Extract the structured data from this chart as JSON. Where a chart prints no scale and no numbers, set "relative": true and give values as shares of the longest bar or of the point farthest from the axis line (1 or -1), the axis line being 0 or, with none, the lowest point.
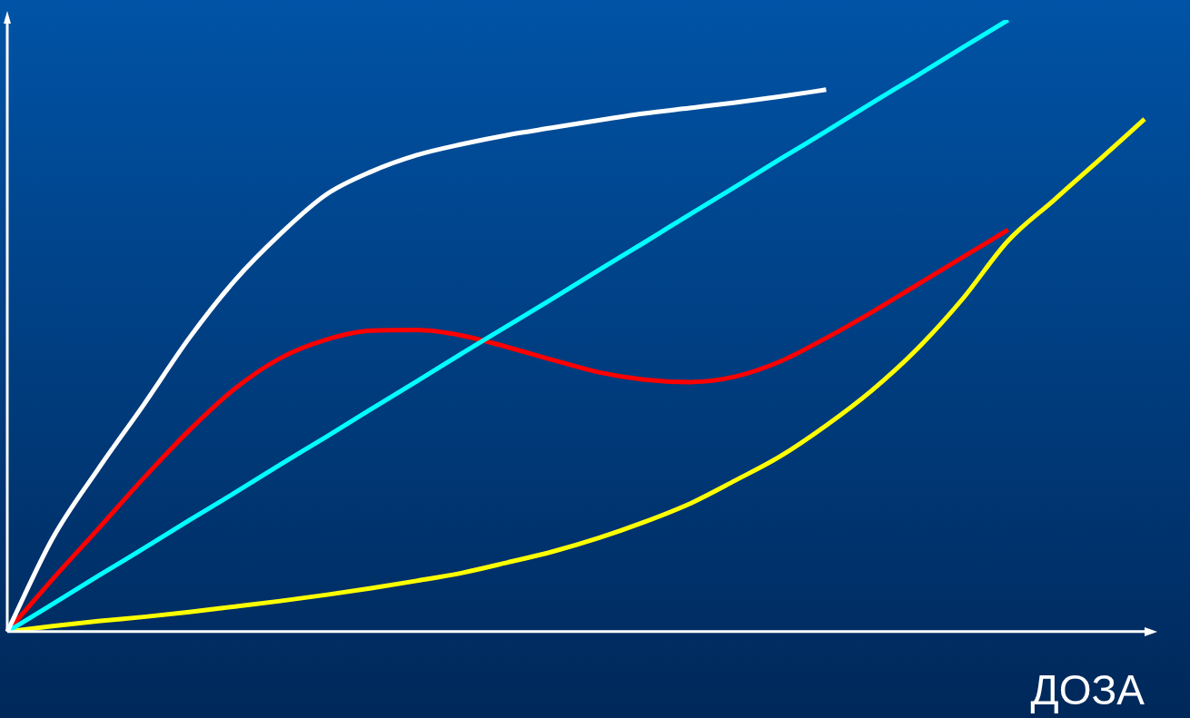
{
  "chart_data": {
    "type": "line",
    "relative": true,
    "xlabel": "ДОЗА",
    "marker": "none",
    "categories": [
      null,
      null,
      null,
      null,
      null,
      null,
      null,
      null,
      null,
      null,
      null,
      null,
      null,
      null,
      null,
      null,
      null,
      null,
      null,
      null,
      null,
      null,
      null,
      null,
      null,
      null
    ],
    "series": [
      {
        "color": "#ffffff",
        "values": [
          0,
          0.153,
          0.266,
          0.371,
          0.48,
          0.574,
          0.65,
          0.714,
          0.752,
          0.779,
          0.797,
          0.812,
          0.824,
          0.836,
          0.847,
          0.856,
          0.865,
          0.875,
          0.886,
          null,
          null,
          null,
          null,
          null,
          null,
          null
        ]
      },
      {
        "color": "#00ffff",
        "values": [
          0,
          0.045,
          0.091,
          0.136,
          0.182,
          0.227,
          0.273,
          0.318,
          0.364,
          0.409,
          0.455,
          0.5,
          0.545,
          0.591,
          0.636,
          0.682,
          0.727,
          0.773,
          0.818,
          0.864,
          0.909,
          0.955,
          1,
          null,
          null,
          null
        ]
      },
      {
        "color": "#ff0000",
        "values": [
          0,
          0.086,
          0.168,
          0.251,
          0.329,
          0.397,
          0.447,
          0.477,
          0.492,
          0.493,
          0.484,
          0.465,
          0.444,
          0.424,
          0.412,
          0.408,
          0.417,
          0.442,
          0.48,
          0.522,
          0.567,
          0.612,
          0.657,
          null,
          null,
          null
        ]
      },
      {
        "color": "#ffff00",
        "values": [
          0,
          0.009,
          0.017,
          0.024,
          0.032,
          0.041,
          0.05,
          0.06,
          0.071,
          0.083,
          0.096,
          0.113,
          0.131,
          0.153,
          0.179,
          0.209,
          0.247,
          0.287,
          0.337,
          0.394,
          0.462,
          0.544,
          0.639,
          0.705,
          0.771,
          0.838
        ]
      }
    ]
  }
}
